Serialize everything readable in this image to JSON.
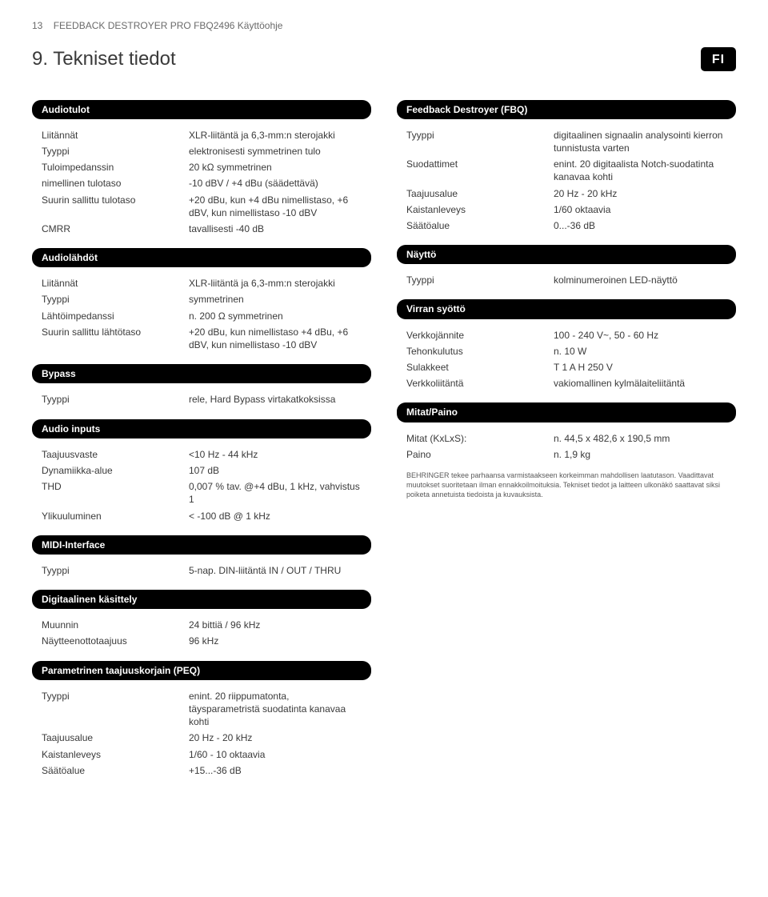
{
  "header": {
    "page_num": "13",
    "doc_title": "FEEDBACK DESTROYER PRO FBQ2496 Käyttöohje"
  },
  "title": "9.  Tekniset tiedot",
  "lang_badge": "FI",
  "left": {
    "sections": [
      {
        "head": "Audiotulot",
        "rows": [
          {
            "label": "Liitännät",
            "value": "XLR-liitäntä ja 6,3-mm:n sterojakki"
          },
          {
            "label": "Tyyppi",
            "value": "elektronisesti symmetrinen tulo"
          },
          {
            "label": "Tuloimpedanssin",
            "value": "20 kΩ symmetrinen"
          },
          {
            "label": "nimellinen tulotaso",
            "value": "-10 dBV / +4 dBu (säädettävä)"
          },
          {
            "label": "Suurin sallittu tulotaso",
            "value": "+20 dBu, kun +4 dBu nimellistaso, +6 dBV, kun nimellistaso -10 dBV"
          },
          {
            "label": "CMRR",
            "value": "tavallisesti -40 dB"
          }
        ]
      },
      {
        "head": "Audiolähdöt",
        "rows": [
          {
            "label": "Liitännät",
            "value": "XLR-liitäntä ja 6,3-mm:n sterojakki"
          },
          {
            "label": "Tyyppi",
            "value": "symmetrinen"
          },
          {
            "label": "Lähtöimpedanssi",
            "value": "n. 200 Ω symmetrinen"
          },
          {
            "label": "Suurin sallittu lähtötaso",
            "value": "+20 dBu, kun nimellistaso +4 dBu, +6 dBV, kun nimellistaso -10 dBV"
          }
        ]
      },
      {
        "head": "Bypass",
        "rows": [
          {
            "label": "Tyyppi",
            "value": "rele, Hard Bypass virtakatkoksissa"
          }
        ]
      },
      {
        "head": "Audio inputs",
        "rows": [
          {
            "label": "Taajuusvaste",
            "value": "<10 Hz - 44 kHz"
          },
          {
            "label": "Dynamiikka-alue",
            "value": "107 dB"
          },
          {
            "label": "THD",
            "value": "0,007 % tav. @+4 dBu, 1 kHz, vahvistus 1"
          },
          {
            "label": "Ylikuuluminen",
            "value": "< -100 dB @ 1 kHz"
          }
        ]
      },
      {
        "head": "MIDI-Interface",
        "rows": [
          {
            "label": "Tyyppi",
            "value": "5-nap. DIN-liitäntä IN / OUT / THRU"
          }
        ]
      },
      {
        "head": "Digitaalinen käsittely",
        "rows": [
          {
            "label": "Muunnin",
            "value": "24 bittiä / 96 kHz"
          },
          {
            "label": "Näytteenottotaajuus",
            "value": "96 kHz"
          }
        ]
      },
      {
        "head": "Parametrinen taajuuskorjain (PEQ)",
        "rows": [
          {
            "label": "Tyyppi",
            "value": "enint. 20 riippumatonta, täysparametristä suodatinta kanavaa kohti"
          },
          {
            "label": "Taajuusalue",
            "value": "20 Hz - 20 kHz"
          },
          {
            "label": "Kaistanleveys",
            "value": "1/60 - 10 oktaavia"
          },
          {
            "label": "Säätöalue",
            "value": "+15...-36 dB"
          }
        ]
      }
    ]
  },
  "right": {
    "sections": [
      {
        "head": "Feedback Destroyer (FBQ)",
        "rows": [
          {
            "label": "Tyyppi",
            "value": "digitaalinen signaalin analysointi kierron tunnistusta varten"
          },
          {
            "label": "Suodattimet",
            "value": "enint. 20 digitaalista Notch-suodatinta kanavaa kohti"
          },
          {
            "label": "Taajuusalue",
            "value": "20 Hz - 20 kHz"
          },
          {
            "label": "Kaistanleveys",
            "value": "1/60 oktaavia"
          },
          {
            "label": "Säätöalue",
            "value": "0...-36 dB"
          }
        ]
      },
      {
        "head": "Näyttö",
        "rows": [
          {
            "label": "Tyyppi",
            "value": "kolminumeroinen LED-näyttö"
          }
        ]
      },
      {
        "head": "Virran syöttö",
        "rows": [
          {
            "label": "Verkkojännite",
            "value": "100 - 240 V~, 50 - 60 Hz"
          },
          {
            "label": "Tehonkulutus",
            "value": "n. 10 W"
          },
          {
            "label": "Sulakkeet",
            "value": "T 1 A H 250 V"
          },
          {
            "label": "Verkkoliitäntä",
            "value": "vakiomallinen kylmälaiteliitäntä"
          }
        ]
      },
      {
        "head": "Mitat/Paino",
        "rows": [
          {
            "label": "Mitat (KxLxS):",
            "value": "n. 44,5  x 482,6  x 190,5 mm"
          },
          {
            "label": "Paino",
            "value": "n. 1,9 kg"
          }
        ]
      }
    ],
    "footnote": "BEHRINGER tekee parhaansa varmistaakseen korkeimman mahdollisen laatutason. Vaadittavat muutokset suoritetaan ilman ennakkoilmoituksia. Tekniset tiedot ja laitteen ulkonäkö saattavat siksi poiketa annetuista tiedoista ja kuvauksista."
  }
}
